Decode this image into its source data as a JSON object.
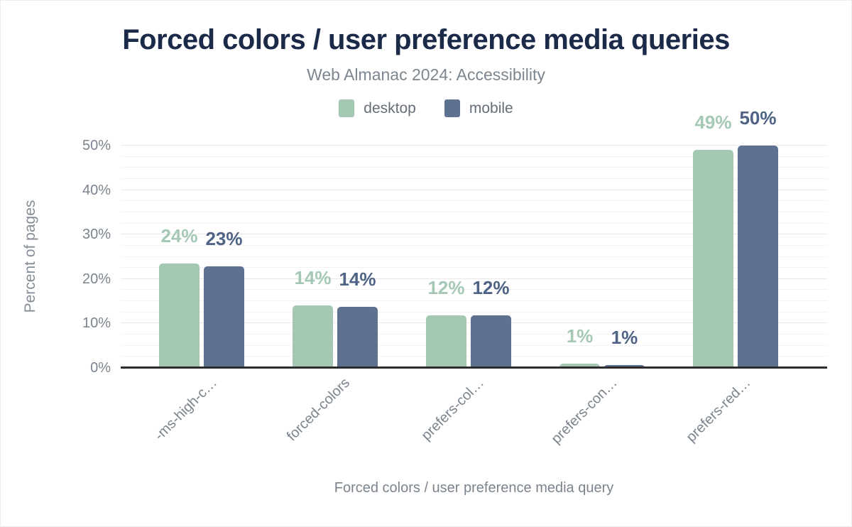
{
  "title": "Forced colors / user preference media queries",
  "subtitle": "Web Almanac 2024: Accessibility",
  "legend": {
    "items": [
      {
        "label": "desktop",
        "color": "#a5c8b4"
      },
      {
        "label": "mobile",
        "color": "#5e7190"
      }
    ]
  },
  "chart_data": {
    "type": "bar",
    "title": "Forced colors / user preference media queries",
    "subtitle": "Web Almanac 2024: Accessibility",
    "categories": [
      "-ms-high-c…",
      "forced-colors",
      "prefers-col…",
      "prefers-con…",
      "prefers-red…"
    ],
    "series": [
      {
        "name": "desktop",
        "color": "#a5c8b4",
        "label_color": "#a5c8b4",
        "values": [
          23.5,
          14.1,
          11.9,
          0.9,
          49
        ],
        "labels": [
          "24%",
          "14%",
          "12%",
          "1%",
          "49%"
        ]
      },
      {
        "name": "mobile",
        "color": "#5e7190",
        "label_color": "#4e6385",
        "values": [
          22.9,
          13.8,
          11.9,
          0.7,
          50
        ],
        "labels": [
          "23%",
          "14%",
          "12%",
          "1%",
          "50%"
        ]
      }
    ],
    "xlabel": "Forced colors / user preference media query",
    "ylabel": "Percent of pages",
    "ylim": [
      0,
      50
    ],
    "yticks": [
      {
        "value": 0,
        "label": "0%"
      },
      {
        "value": 10,
        "label": "10%"
      },
      {
        "value": 20,
        "label": "20%"
      },
      {
        "value": 30,
        "label": "30%"
      },
      {
        "value": 40,
        "label": "40%"
      },
      {
        "value": 50,
        "label": "50%"
      }
    ],
    "minor_grid_step": 2.5,
    "grid": true,
    "legend_position": "top"
  },
  "colors": {
    "title": "#1b2a49",
    "subtitle": "#7c8690",
    "tick_label": "#7b848e",
    "axis_line": "#2d2d2d",
    "grid_major": "#e7e7e7",
    "grid_minor": "#f3f3f3",
    "background": "#ffffff"
  }
}
